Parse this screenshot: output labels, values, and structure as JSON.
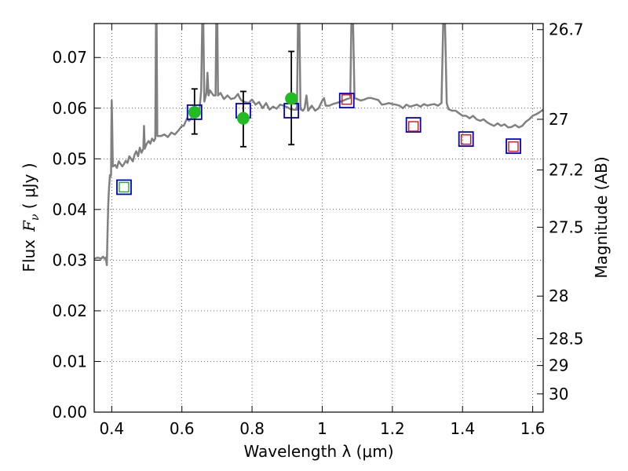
{
  "chart_data": {
    "type": "scatter",
    "xlabel": "Wavelength  λ (μm)",
    "ylabel_prefix": "Flux",
    "ylabel_symbol": "F",
    "ylabel_subscript": "ν",
    "ylabel_unit": " ( μJy )",
    "y2label": "Magnitude (AB)",
    "xlim": [
      0.35,
      1.63
    ],
    "ylim": [
      0.0,
      0.0767
    ],
    "grid": true,
    "x_ticks": [
      {
        "v": 0.4,
        "label": "0.4"
      },
      {
        "v": 0.6,
        "label": "0.6"
      },
      {
        "v": 0.8,
        "label": "0.8"
      },
      {
        "v": 1.0,
        "label": "1"
      },
      {
        "v": 1.2,
        "label": "1.2"
      },
      {
        "v": 1.4,
        "label": "1.4"
      },
      {
        "v": 1.6,
        "label": "1.6"
      }
    ],
    "y_ticks": [
      {
        "v": 0.0,
        "label": "0.00"
      },
      {
        "v": 0.01,
        "label": "0.01"
      },
      {
        "v": 0.02,
        "label": "0.02"
      },
      {
        "v": 0.03,
        "label": "0.03"
      },
      {
        "v": 0.04,
        "label": "0.04"
      },
      {
        "v": 0.05,
        "label": "0.05"
      },
      {
        "v": 0.06,
        "label": "0.06"
      },
      {
        "v": 0.07,
        "label": "0.07"
      }
    ],
    "y2_ticks": [
      {
        "flux": 0.0755,
        "label": "26.7"
      },
      {
        "flux": 0.0578,
        "label": "27"
      },
      {
        "flux": 0.0478,
        "label": "27.2"
      },
      {
        "flux": 0.0365,
        "label": "27.5"
      },
      {
        "flux": 0.0229,
        "label": "28"
      },
      {
        "flux": 0.0145,
        "label": "28.5"
      },
      {
        "flux": 0.0092,
        "label": "29"
      },
      {
        "flux": 0.0036,
        "label": "30"
      }
    ],
    "sed_model": {
      "color": "#808080",
      "points": [
        [
          0.35,
          0.0303
        ],
        [
          0.36,
          0.0305
        ],
        [
          0.37,
          0.0303
        ],
        [
          0.375,
          0.0307
        ],
        [
          0.38,
          0.0303
        ],
        [
          0.383,
          0.0305
        ],
        [
          0.386,
          0.029
        ],
        [
          0.388,
          0.0355
        ],
        [
          0.39,
          0.041
        ],
        [
          0.392,
          0.044
        ],
        [
          0.395,
          0.0468
        ],
        [
          0.397,
          0.0465
        ],
        [
          0.398,
          0.047
        ],
        [
          0.399,
          0.056
        ],
        [
          0.4,
          0.0615
        ],
        [
          0.401,
          0.058
        ],
        [
          0.403,
          0.0485
        ],
        [
          0.41,
          0.0488
        ],
        [
          0.415,
          0.0482
        ],
        [
          0.42,
          0.0495
        ],
        [
          0.43,
          0.0485
        ],
        [
          0.435,
          0.049
        ],
        [
          0.44,
          0.0496
        ],
        [
          0.445,
          0.0492
        ],
        [
          0.45,
          0.0505
        ],
        [
          0.46,
          0.0495
        ],
        [
          0.465,
          0.0508
        ],
        [
          0.47,
          0.0515
        ],
        [
          0.475,
          0.0505
        ],
        [
          0.48,
          0.0522
        ],
        [
          0.485,
          0.0512
        ],
        [
          0.49,
          0.052
        ],
        [
          0.492,
          0.0565
        ],
        [
          0.494,
          0.052
        ],
        [
          0.5,
          0.053
        ],
        [
          0.505,
          0.0535
        ],
        [
          0.51,
          0.053
        ],
        [
          0.515,
          0.054
        ],
        [
          0.52,
          0.0535
        ],
        [
          0.524,
          0.054
        ],
        [
          0.526,
          0.0767
        ],
        [
          0.528,
          0.0767
        ],
        [
          0.53,
          0.0545
        ],
        [
          0.54,
          0.0545
        ],
        [
          0.55,
          0.0548
        ],
        [
          0.56,
          0.0543
        ],
        [
          0.57,
          0.0552
        ],
        [
          0.58,
          0.0548
        ],
        [
          0.59,
          0.0556
        ],
        [
          0.6,
          0.0565
        ],
        [
          0.605,
          0.0565
        ],
        [
          0.615,
          0.058
        ],
        [
          0.62,
          0.0575
        ],
        [
          0.63,
          0.0583
        ],
        [
          0.64,
          0.0592
        ],
        [
          0.645,
          0.0592
        ],
        [
          0.65,
          0.0597
        ],
        [
          0.655,
          0.0635
        ],
        [
          0.658,
          0.0767
        ],
        [
          0.661,
          0.0767
        ],
        [
          0.664,
          0.0613
        ],
        [
          0.67,
          0.063
        ],
        [
          0.673,
          0.067
        ],
        [
          0.676,
          0.0625
        ],
        [
          0.68,
          0.0635
        ],
        [
          0.69,
          0.0625
        ],
        [
          0.696,
          0.0625
        ],
        [
          0.698,
          0.0767
        ],
        [
          0.701,
          0.0767
        ],
        [
          0.703,
          0.0625
        ],
        [
          0.71,
          0.063
        ],
        [
          0.72,
          0.0618
        ],
        [
          0.73,
          0.0625
        ],
        [
          0.74,
          0.0618
        ],
        [
          0.75,
          0.062
        ],
        [
          0.76,
          0.0628
        ],
        [
          0.765,
          0.062
        ],
        [
          0.77,
          0.0615
        ],
        [
          0.78,
          0.0612
        ],
        [
          0.79,
          0.061
        ],
        [
          0.8,
          0.0617
        ],
        [
          0.81,
          0.0607
        ],
        [
          0.82,
          0.0612
        ],
        [
          0.83,
          0.06
        ],
        [
          0.84,
          0.061
        ],
        [
          0.85,
          0.0597
        ],
        [
          0.86,
          0.0603
        ],
        [
          0.87,
          0.0599
        ],
        [
          0.88,
          0.0607
        ],
        [
          0.89,
          0.0605
        ],
        [
          0.9,
          0.0602
        ],
        [
          0.91,
          0.0598
        ],
        [
          0.92,
          0.0597
        ],
        [
          0.928,
          0.0597
        ],
        [
          0.931,
          0.0767
        ],
        [
          0.935,
          0.0767
        ],
        [
          0.938,
          0.0598
        ],
        [
          0.945,
          0.0595
        ],
        [
          0.95,
          0.06
        ],
        [
          0.955,
          0.0625
        ],
        [
          0.96,
          0.0595
        ],
        [
          0.97,
          0.0605
        ],
        [
          0.98,
          0.0595
        ],
        [
          0.99,
          0.06
        ],
        [
          1.0,
          0.0615
        ],
        [
          1.005,
          0.062
        ],
        [
          1.01,
          0.0605
        ],
        [
          1.02,
          0.0605
        ],
        [
          1.03,
          0.0608
        ],
        [
          1.04,
          0.061
        ],
        [
          1.05,
          0.0612
        ],
        [
          1.06,
          0.0615
        ],
        [
          1.07,
          0.0618
        ],
        [
          1.08,
          0.062
        ],
        [
          1.083,
          0.0767
        ],
        [
          1.088,
          0.0767
        ],
        [
          1.092,
          0.062
        ],
        [
          1.1,
          0.0618
        ],
        [
          1.11,
          0.0615
        ],
        [
          1.12,
          0.0617
        ],
        [
          1.13,
          0.062
        ],
        [
          1.14,
          0.062
        ],
        [
          1.15,
          0.0618
        ],
        [
          1.16,
          0.0616
        ],
        [
          1.17,
          0.0607
        ],
        [
          1.18,
          0.0608
        ],
        [
          1.19,
          0.061
        ],
        [
          1.2,
          0.0608
        ],
        [
          1.21,
          0.0607
        ],
        [
          1.22,
          0.0605
        ],
        [
          1.23,
          0.06
        ],
        [
          1.24,
          0.0607
        ],
        [
          1.25,
          0.0603
        ],
        [
          1.26,
          0.0605
        ],
        [
          1.27,
          0.0607
        ],
        [
          1.28,
          0.0603
        ],
        [
          1.29,
          0.0608
        ],
        [
          1.3,
          0.0605
        ],
        [
          1.31,
          0.0607
        ],
        [
          1.32,
          0.0608
        ],
        [
          1.33,
          0.0605
        ],
        [
          1.34,
          0.061
        ],
        [
          1.345,
          0.0767
        ],
        [
          1.35,
          0.0767
        ],
        [
          1.355,
          0.061
        ],
        [
          1.36,
          0.0598
        ],
        [
          1.37,
          0.0595
        ],
        [
          1.38,
          0.0595
        ],
        [
          1.39,
          0.059
        ],
        [
          1.4,
          0.0585
        ],
        [
          1.41,
          0.0585
        ],
        [
          1.42,
          0.058
        ],
        [
          1.43,
          0.0585
        ],
        [
          1.44,
          0.0578
        ],
        [
          1.45,
          0.0575
        ],
        [
          1.46,
          0.0578
        ],
        [
          1.47,
          0.0572
        ],
        [
          1.48,
          0.0568
        ],
        [
          1.49,
          0.0565
        ],
        [
          1.5,
          0.057
        ],
        [
          1.51,
          0.0565
        ],
        [
          1.52,
          0.0568
        ],
        [
          1.53,
          0.0562
        ],
        [
          1.54,
          0.0563
        ],
        [
          1.55,
          0.0567
        ],
        [
          1.56,
          0.0562
        ],
        [
          1.57,
          0.0565
        ],
        [
          1.58,
          0.0573
        ],
        [
          1.59,
          0.0578
        ],
        [
          1.6,
          0.0585
        ],
        [
          1.61,
          0.0588
        ],
        [
          1.62,
          0.0592
        ],
        [
          1.63,
          0.0597
        ]
      ]
    },
    "model_photometry": {
      "marker": "open-square",
      "color": "#0000cc",
      "points": [
        [
          0.435,
          0.0444
        ],
        [
          0.636,
          0.0592
        ],
        [
          0.775,
          0.0595
        ],
        [
          0.912,
          0.0595
        ],
        [
          1.07,
          0.0615
        ],
        [
          1.26,
          0.0567
        ],
        [
          1.41,
          0.0539
        ],
        [
          1.545,
          0.0525
        ]
      ]
    },
    "inner_markers": {
      "marker": "open-square-small",
      "points": [
        [
          0.435,
          0.0444,
          "#22aa22"
        ],
        [
          1.07,
          0.0617,
          "#dd1111"
        ],
        [
          1.26,
          0.0564,
          "#dd1111"
        ],
        [
          1.41,
          0.0538,
          "#dd1111"
        ],
        [
          1.545,
          0.0524,
          "#dd1111"
        ]
      ]
    },
    "observed": {
      "marker": "filled-circle",
      "color": "#22bb22",
      "errorbar_color": "#000000",
      "points": [
        {
          "x": 0.636,
          "y": 0.0592,
          "ylo": 0.0549,
          "yhi": 0.0638
        },
        {
          "x": 0.775,
          "y": 0.058,
          "ylo": 0.0524,
          "yhi": 0.0633
        },
        {
          "x": 0.912,
          "y": 0.0619,
          "ylo": 0.0528,
          "yhi": 0.0712
        }
      ]
    }
  }
}
